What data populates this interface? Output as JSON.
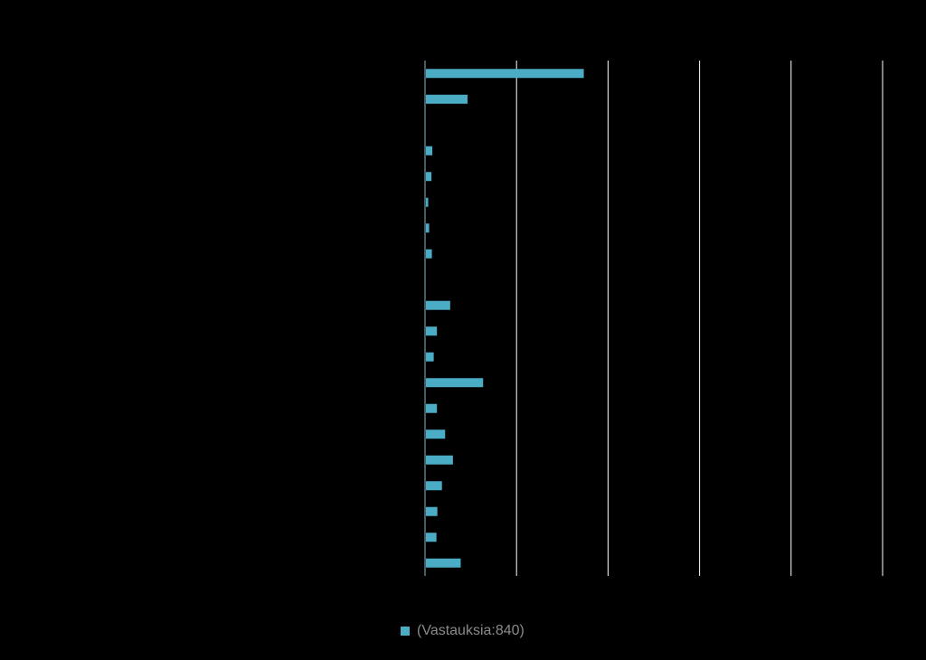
{
  "chart_data": {
    "type": "bar",
    "orientation": "horizontal",
    "categories": [
      "",
      "",
      "",
      "",
      "",
      "",
      "",
      "",
      "",
      "",
      "",
      "",
      "",
      "",
      "",
      "",
      "",
      "",
      "",
      ""
    ],
    "series": [
      {
        "name": "(Vastauksia:840)",
        "values": [
          34.7,
          9.3,
          0,
          1.6,
          1.4,
          0.7,
          0.9,
          1.5,
          0.2,
          5.5,
          2.6,
          1.9,
          12.7,
          2.6,
          4.4,
          6.1,
          3.7,
          2.7,
          2.5,
          7.8
        ]
      }
    ],
    "xlim": [
      0,
      100
    ],
    "x_gridlines": [
      0,
      20,
      40,
      60,
      80,
      100
    ],
    "grid": true,
    "legend_position": "bottom",
    "colors": {
      "bar": "#4BACC6",
      "grid": "#FFFFFF",
      "background": "#000000"
    }
  }
}
